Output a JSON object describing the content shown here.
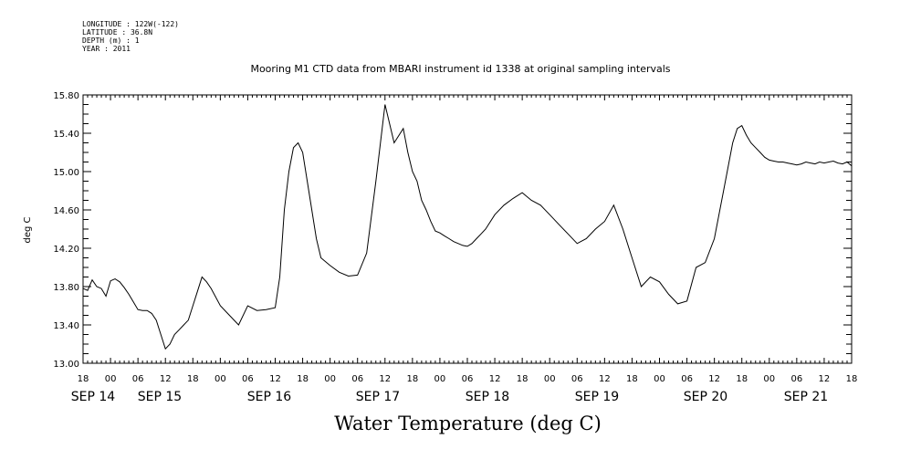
{
  "meta": {
    "longitude": "LONGITUDE : 122W(-122)",
    "latitude": "LATITUDE : 36.8N",
    "depth": "DEPTH (m) : 1",
    "year": "YEAR : 2011"
  },
  "chart_data": {
    "type": "line",
    "title": "Mooring M1 CTD data from MBARI instrument id 1338 at original sampling intervals",
    "bottom_title": "Water Temperature (deg C)",
    "ylabel": "deg C",
    "xlabel": "",
    "ylim": [
      13.0,
      15.8
    ],
    "yticks": [
      "13.00",
      "13.40",
      "13.80",
      "14.20",
      "14.60",
      "15.00",
      "15.40",
      "15.80"
    ],
    "xlim": [
      18,
      186
    ],
    "hour_labels": [
      "18",
      "00",
      "06",
      "12",
      "18",
      "00",
      "06",
      "12",
      "18",
      "00",
      "06",
      "12",
      "18",
      "00",
      "06",
      "12",
      "18",
      "00",
      "06",
      "12",
      "18",
      "00",
      "06",
      "12",
      "18",
      "00",
      "06",
      "12",
      "18"
    ],
    "date_labels": [
      "SEP 14",
      "SEP 15",
      "SEP 16",
      "SEP 17",
      "SEP 18",
      "SEP 19",
      "SEP 20",
      "SEP 21"
    ],
    "grid": false,
    "series": [
      {
        "x": [
          18,
          19,
          20,
          21,
          22,
          23,
          24,
          25,
          26,
          27,
          28,
          29,
          30,
          31,
          32,
          33,
          34,
          35,
          36,
          37,
          38,
          39,
          40,
          41,
          42,
          43,
          44,
          45,
          46,
          48,
          50,
          52,
          54,
          56,
          58,
          60,
          61,
          62,
          63,
          64,
          65,
          66,
          67,
          68,
          69,
          70,
          72,
          74,
          76,
          78,
          80,
          82,
          84,
          86,
          88,
          89,
          90,
          91,
          92,
          93,
          94,
          95,
          96,
          97,
          98,
          99,
          100,
          101,
          102,
          103,
          104,
          105,
          106,
          108,
          110,
          112,
          114,
          116,
          118,
          120,
          122,
          124,
          126,
          128,
          130,
          132,
          134,
          136,
          138,
          140,
          142,
          144,
          146,
          148,
          150,
          152,
          154,
          156,
          158,
          160,
          161,
          162,
          163,
          164,
          165,
          166,
          167,
          168,
          169,
          170,
          171,
          172,
          173,
          174,
          175,
          176,
          177,
          178,
          179,
          180,
          181,
          182,
          183,
          184,
          185,
          186
        ],
        "y": [
          13.78,
          13.76,
          13.87,
          13.8,
          13.78,
          13.7,
          13.86,
          13.88,
          13.85,
          13.79,
          13.72,
          13.64,
          13.56,
          13.55,
          13.55,
          13.52,
          13.45,
          13.3,
          13.15,
          13.2,
          13.3,
          13.35,
          13.4,
          13.45,
          13.6,
          13.75,
          13.9,
          13.85,
          13.78,
          13.6,
          13.5,
          13.4,
          13.6,
          13.55,
          13.56,
          13.58,
          13.9,
          14.6,
          15.0,
          15.25,
          15.3,
          15.2,
          14.9,
          14.6,
          14.3,
          14.1,
          14.02,
          13.95,
          13.91,
          13.92,
          14.15,
          14.9,
          15.7,
          15.3,
          15.45,
          15.2,
          15.0,
          14.9,
          14.7,
          14.6,
          14.48,
          14.38,
          14.36,
          14.33,
          14.3,
          14.27,
          14.25,
          14.23,
          14.22,
          14.25,
          14.3,
          14.35,
          14.4,
          14.55,
          14.65,
          14.72,
          14.78,
          14.7,
          14.65,
          14.55,
          14.45,
          14.35,
          14.25,
          14.3,
          14.4,
          14.48,
          14.65,
          14.4,
          14.1,
          13.8,
          13.9,
          13.85,
          13.72,
          13.62,
          13.65,
          14.0,
          14.05,
          14.3,
          14.8,
          15.3,
          15.45,
          15.48,
          15.38,
          15.3,
          15.25,
          15.2,
          15.15,
          15.12,
          15.11,
          15.1,
          15.1,
          15.09,
          15.08,
          15.07,
          15.08,
          15.1,
          15.09,
          15.08,
          15.1,
          15.09,
          15.1,
          15.11,
          15.09,
          15.08,
          15.1,
          15.06
        ]
      }
    ]
  }
}
